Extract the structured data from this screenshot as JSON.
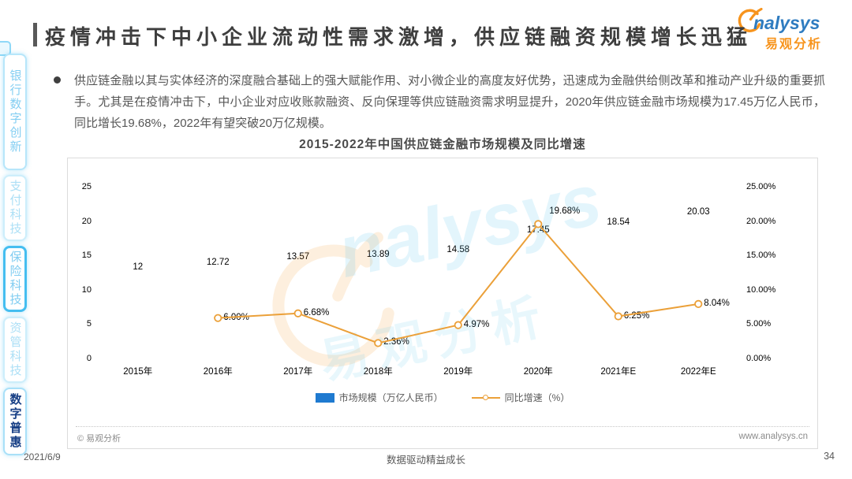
{
  "page": {
    "title": "疫情冲击下中小企业流动性需求激增，供应链融资规模增长迅猛",
    "footer": {
      "date": "2021/6/9",
      "slogan": "数据驱动精益成长",
      "page_number": "34"
    }
  },
  "logo": {
    "brand": "nalysys",
    "cjk": "易观分析"
  },
  "watermark": {
    "brand": "nalysys",
    "cjk": "易观分析"
  },
  "sidebar": {
    "items": [
      {
        "label": "银行数字创新",
        "state": "normal"
      },
      {
        "label": "支付科技",
        "state": "faded"
      },
      {
        "label": "保险科技",
        "state": "highlighted"
      },
      {
        "label": "资管科技",
        "state": "faded"
      },
      {
        "label": "数字普惠",
        "state": "active"
      }
    ]
  },
  "body": {
    "bullet_text": "供应链金融以其与实体经济的深度融合基础上的强大赋能作用、对小微企业的高度友好优势，迅速成为金融供给侧改革和推动产业升级的重要抓手。尤其是在疫情冲击下，中小企业对应收账款融资、反向保理等供应链融资需求明显提升，2020年供应链金融市场规模为17.45万亿人民币，同比增长19.68%，2022年有望突破20万亿规模。"
  },
  "chart": {
    "source": "© 易观分析",
    "website": "www.analysys.cn"
  },
  "chart_data": {
    "type": "bar+line",
    "title": "2015-2022年中国供应链金融市场规模及同比增速",
    "categories": [
      "2015年",
      "2016年",
      "2017年",
      "2018年",
      "2019年",
      "2020年",
      "2021年E",
      "2022年E"
    ],
    "series": [
      {
        "name": "市场规模（万亿人民币）",
        "type": "bar",
        "values": [
          12,
          12.72,
          13.57,
          13.89,
          14.58,
          17.45,
          18.54,
          20.03
        ],
        "value_labels": [
          "12",
          "12.72",
          "13.57",
          "13.89",
          "14.58",
          "17.45",
          "18.54",
          "20.03"
        ]
      },
      {
        "name": "同比增速（%）",
        "type": "line",
        "values": [
          null,
          6.0,
          6.68,
          2.36,
          4.97,
          19.68,
          6.25,
          8.04
        ],
        "value_labels": [
          null,
          "6.00%",
          "6.68%",
          "2.36%",
          "4.97%",
          "19.68%",
          "6.25%",
          "8.04%"
        ]
      }
    ],
    "left_axis": {
      "max": 25,
      "ticks": [
        0,
        5,
        10,
        15,
        20,
        25
      ],
      "tick_labels": [
        "0",
        "5",
        "10",
        "15",
        "20",
        "25"
      ]
    },
    "right_axis": {
      "max": 25,
      "ticks": [
        0,
        5,
        10,
        15,
        20,
        25
      ],
      "tick_labels": [
        "0.00%",
        "5.00%",
        "10.00%",
        "15.00%",
        "20.00%",
        "25.00%"
      ]
    },
    "highlight_index": 5,
    "bar_color": "#1F7AD0",
    "highlight_color": "#C00A0D",
    "line_color": "#EBA039",
    "axis_color": "#BFBFBF",
    "label_color": "#595959",
    "grid": false,
    "legend_position": "bottom"
  },
  "colors": {
    "accent_bar": "#595959",
    "title_text": "#3E3E3E",
    "tab_text": "#83CEF2",
    "tab_active_text": "#173F85",
    "tab_border": "#B7E6FA",
    "tab_highlight_border": "#45BEF0",
    "logo_blue": "#2F7CC0",
    "logo_orange": "#F7941D"
  }
}
